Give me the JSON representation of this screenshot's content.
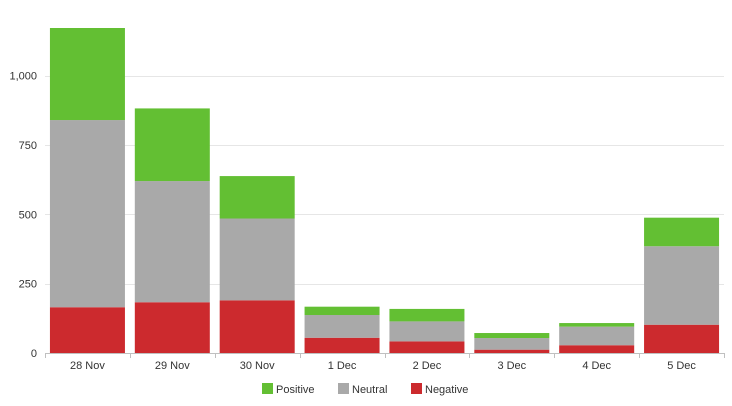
{
  "chart_data": {
    "type": "bar",
    "stacked": true,
    "title": "",
    "xlabel": "",
    "ylabel": "",
    "categories": [
      "28 Nov",
      "29 Nov",
      "30 Nov",
      "1 Dec",
      "2 Dec",
      "3 Dec",
      "4 Dec",
      "5 Dec"
    ],
    "series": [
      {
        "name": "Negative",
        "color": "#cc2a2e",
        "values": [
          165,
          183,
          190,
          55,
          42,
          12,
          28,
          102
        ]
      },
      {
        "name": "Neutral",
        "color": "#a9a9a9",
        "values": [
          675,
          437,
          295,
          82,
          72,
          42,
          67,
          283
        ]
      },
      {
        "name": "Positive",
        "color": "#63bf33",
        "values": [
          332,
          262,
          153,
          30,
          45,
          18,
          13,
          103
        ]
      }
    ],
    "ylim": [
      0,
      1172
    ],
    "yticks": [
      {
        "value": 0,
        "label": "0"
      },
      {
        "value": 250,
        "label": "250"
      },
      {
        "value": 500,
        "label": "500"
      },
      {
        "value": 750,
        "label": "750"
      },
      {
        "value": 1000,
        "label": "1,000"
      }
    ],
    "grid": true,
    "legend": {
      "placement": "bottom-center",
      "order": [
        "Positive",
        "Neutral",
        "Negative"
      ]
    }
  }
}
